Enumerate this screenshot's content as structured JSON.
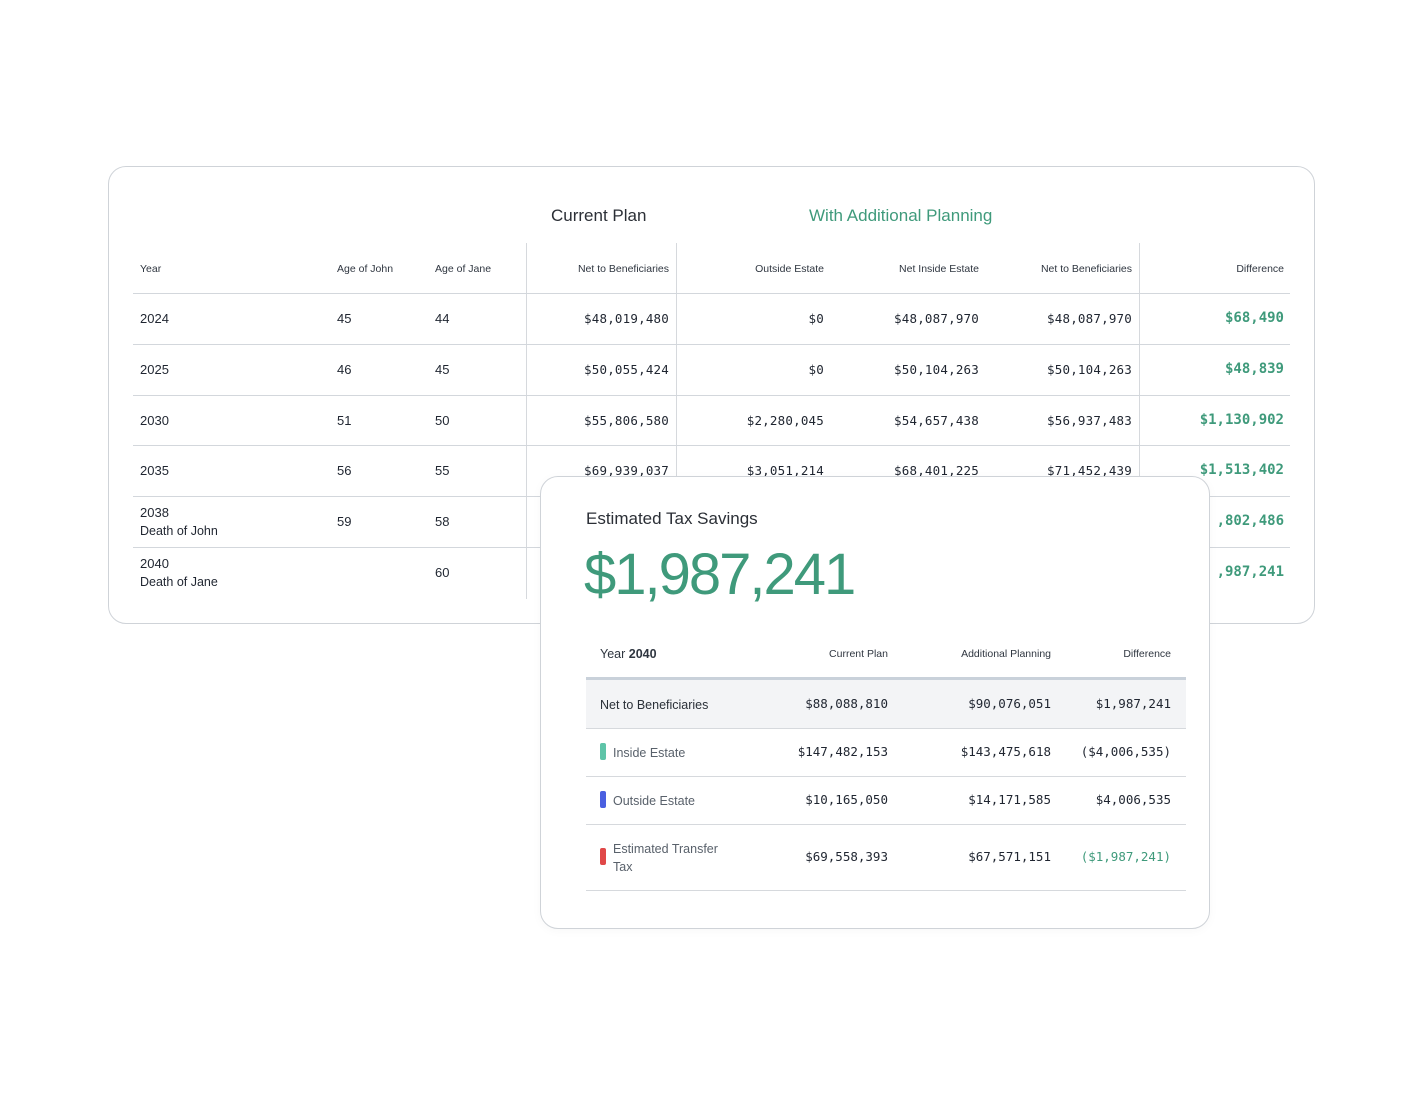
{
  "projection": {
    "group_headers": {
      "current_plan": "Current Plan",
      "with_additional_planning": "With Additional Planning"
    },
    "columns": [
      "Year",
      "Age of John",
      "Age of Jane",
      "Net to Beneficiaries",
      "Outside Estate",
      "Net Inside Estate",
      "Net to Beneficiaries",
      "Difference"
    ],
    "rows": [
      {
        "year": "2024",
        "event": "",
        "age_john": "45",
        "age_jane": "44",
        "cp_net": "$48,019,480",
        "outside": "$0",
        "net_inside": "$48,087,970",
        "ap_net": "$48,087,970",
        "difference": "$68,490"
      },
      {
        "year": "2025",
        "event": "",
        "age_john": "46",
        "age_jane": "45",
        "cp_net": "$50,055,424",
        "outside": "$0",
        "net_inside": "$50,104,263",
        "ap_net": "$50,104,263",
        "difference": "$48,839"
      },
      {
        "year": "2030",
        "event": "",
        "age_john": "51",
        "age_jane": "50",
        "cp_net": "$55,806,580",
        "outside": "$2,280,045",
        "net_inside": "$54,657,438",
        "ap_net": "$56,937,483",
        "difference": "$1,130,902"
      },
      {
        "year": "2035",
        "event": "",
        "age_john": "56",
        "age_jane": "55",
        "cp_net": "$69,939,037",
        "outside": "$3,051,214",
        "net_inside": "$68,401,225",
        "ap_net": "$71,452,439",
        "difference": "$1,513,402"
      },
      {
        "year": "2038",
        "event": "Death of John",
        "age_john": "59",
        "age_jane": "58",
        "cp_net": "",
        "outside": "",
        "net_inside": "",
        "ap_net": "",
        "difference": ",802,486"
      },
      {
        "year": "2040",
        "event": "Death of Jane",
        "age_john": "",
        "age_jane": "60",
        "cp_net": "",
        "outside": "",
        "net_inside": "",
        "ap_net": "",
        "difference": ",987,241"
      }
    ]
  },
  "savings": {
    "title": "Estimated Tax Savings",
    "amount": "$1,987,241",
    "year_prefix": "Year",
    "year_value": "2040",
    "columns": [
      "Current Plan",
      "Additional Planning",
      "Difference"
    ],
    "rows": [
      {
        "label": "Net to Beneficiaries",
        "swatch": "",
        "current": "$88,088,810",
        "additional": "$90,076,051",
        "difference": "$1,987,241"
      },
      {
        "label": "Inside Estate",
        "swatch": "#5ec4a8",
        "current": "$147,482,153",
        "additional": "$143,475,618",
        "difference": "($4,006,535)"
      },
      {
        "label": "Outside Estate",
        "swatch": "#4a5fe0",
        "current": "$10,165,050",
        "additional": "$14,171,585",
        "difference": "$4,006,535"
      },
      {
        "label": "Estimated Transfer Tax",
        "swatch": "#e04848",
        "current": "$69,558,393",
        "additional": "$67,571,151",
        "difference": "($1,987,241)"
      }
    ]
  },
  "colors": {
    "accent_green": "#3f9a7b",
    "border": "#cfd3d8"
  }
}
